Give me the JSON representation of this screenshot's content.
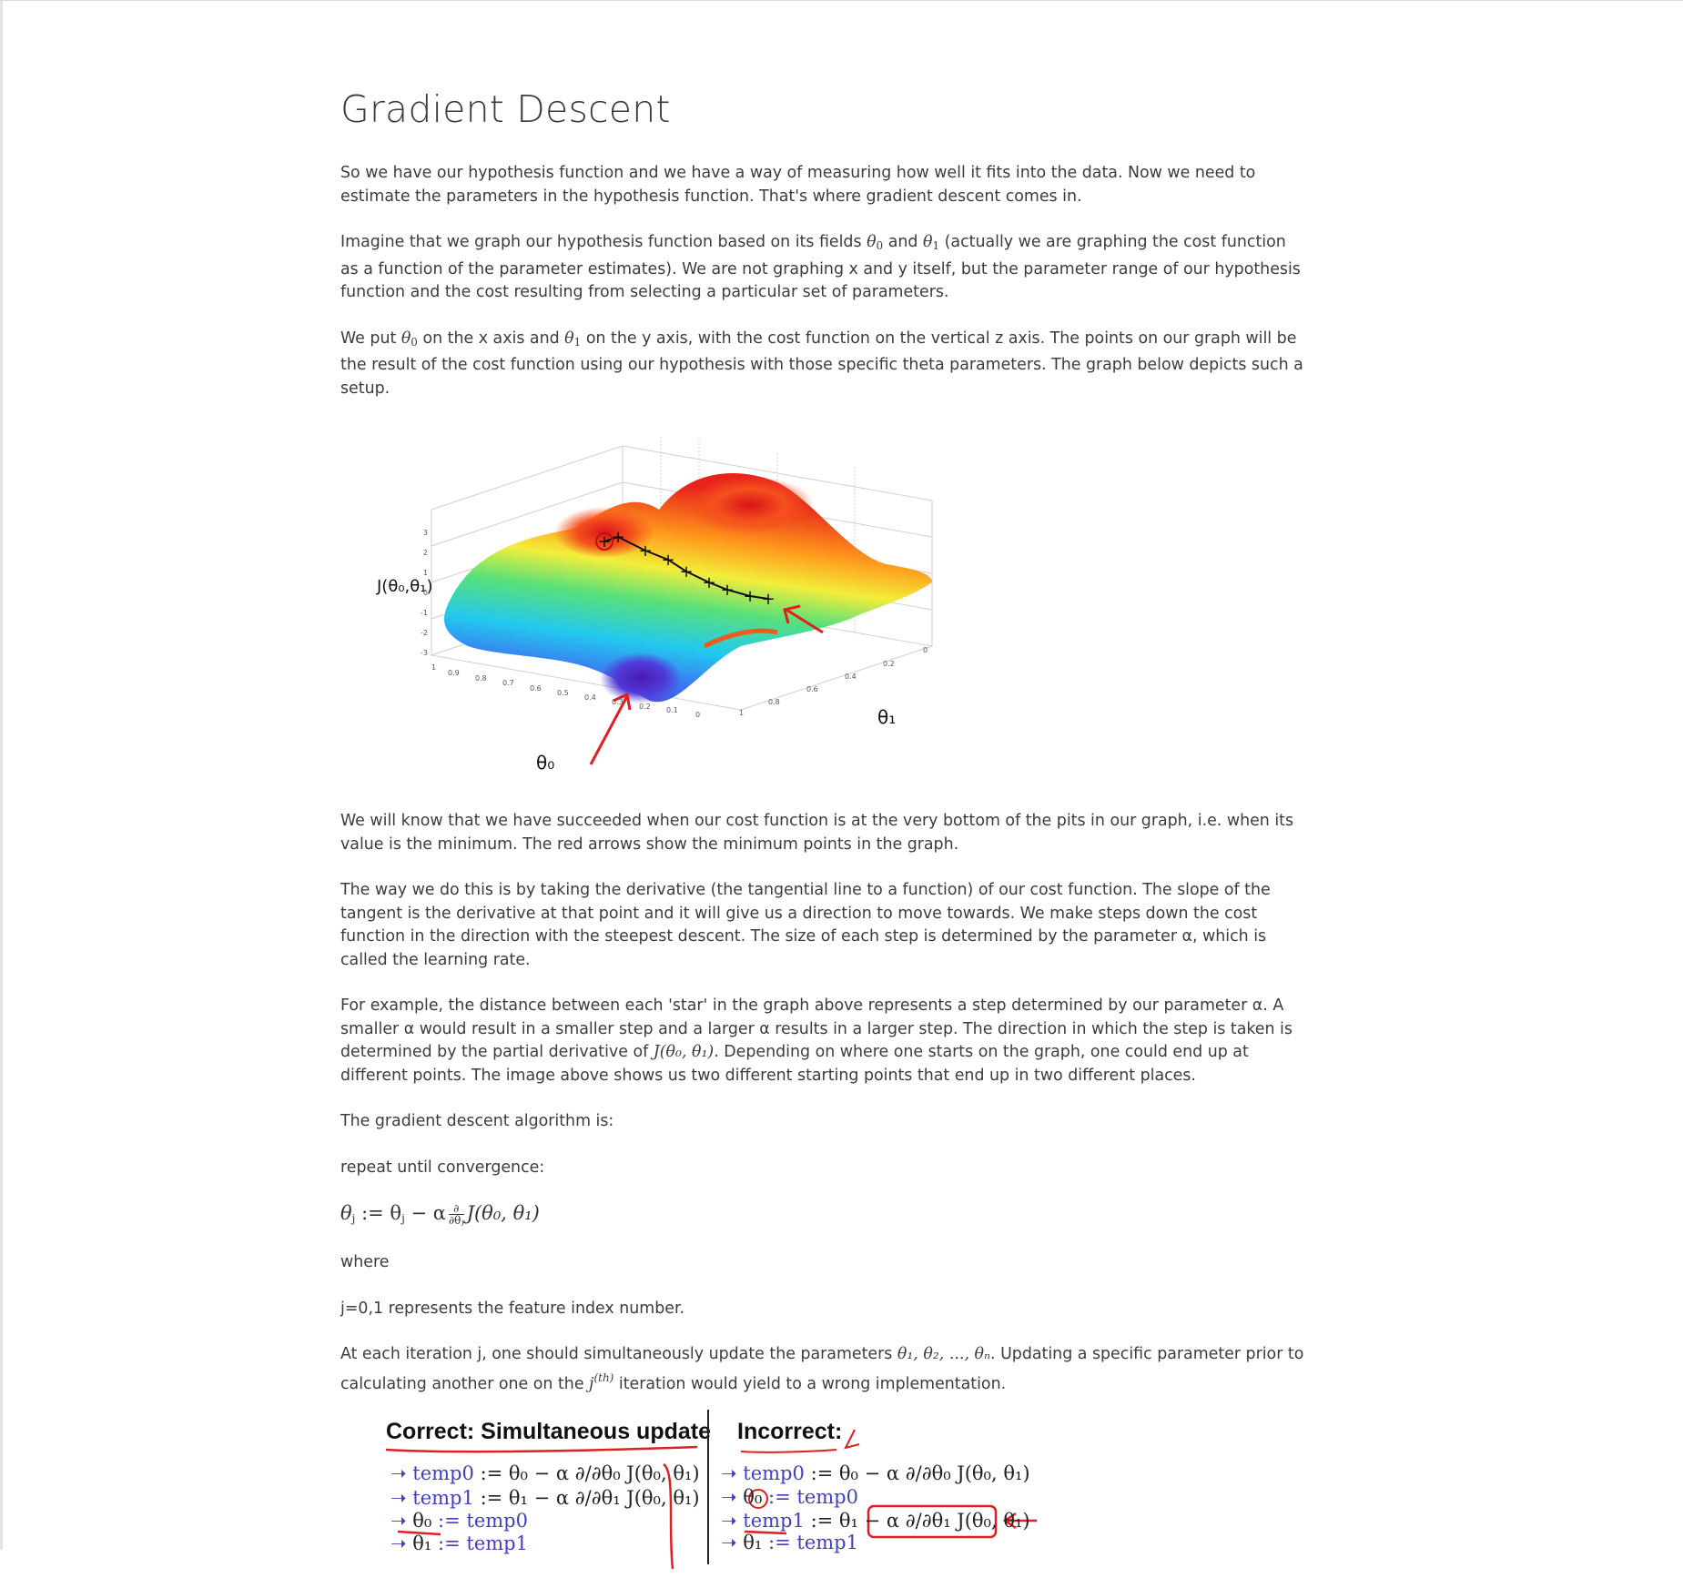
{
  "page": {
    "title": "Gradient Descent",
    "p1": "So we have our hypothesis function and we have a way of measuring how well it fits into the data. Now we need to estimate the parameters in the hypothesis function. That's where gradient descent comes in.",
    "p2_a": "Imagine that we graph our hypothesis function based on its fields ",
    "p2_b": " and ",
    "p2_c": " (actually we are graphing the cost function as a function of the parameter estimates). We are not graphing x and y itself, but the parameter range of our hypothesis function and the cost resulting from selecting a particular set of parameters.",
    "p3_a": "We put ",
    "p3_b": " on the x axis and ",
    "p3_c": " on the y axis, with the cost function on the vertical z axis. The points on our graph will be the result of the cost function using our hypothesis with those specific theta parameters. The graph below depicts such a setup.",
    "p4": "We will know that we have succeeded when our cost function is at the very bottom of the pits in our graph, i.e. when its value is the minimum.  The red arrows show the minimum points in the graph.",
    "p5": "The way we do this is by taking the derivative (the tangential line to a function) of our cost function. The slope of the tangent is the derivative at that point and it will give us a direction to move towards. We make steps down the cost function in the direction with the steepest descent. The size of each step is determined by the parameter α, which is called the learning rate.",
    "p6_a": "For example, the distance between each 'star' in the graph above represents a step determined by our parameter α. A smaller α would result in a smaller step and a larger α results in a larger step. The direction in which the step is taken is determined by the partial derivative of ",
    "p6_b": ". Depending on where one starts on the graph, one could end up at different points. The image above shows us two different starting points that end up in two different places.",
    "p7": "The gradient descent algorithm is:",
    "p8": "repeat until convergence:",
    "p9": "where",
    "p10": "j=0,1 represents the feature index number.",
    "p11_a": "At each iteration j, one should simultaneously update the parameters ",
    "p11_b": ". Updating a specific parameter prior to calculating another one on the ",
    "p11_c": " iteration would yield to a wrong implementation.",
    "theta0": "θ",
    "theta1": "θ",
    "J_expr": "J(θ₀, θ₁)",
    "thetas_list": "θ₁, θ₂, ..., θₙ",
    "jth": "j",
    "jth_sup": "(th)",
    "formula_lhs": "θ",
    "formula_mid": ":= θ",
    "formula_minus": " − α",
    "formula_num": "∂",
    "formula_den": "∂θⱼ",
    "formula_rhs": "J(θ₀, θ₁)"
  },
  "figure": {
    "z_label": "J(θ₀,θ₁)",
    "x_label": "θ₀",
    "y_label": "θ₁",
    "z_ticks": [
      "3",
      "2",
      "1",
      "0",
      "-1",
      "-2",
      "-3"
    ],
    "x_ticks": [
      "1",
      "0.9",
      "0.8",
      "0.7",
      "0.6",
      "0.5",
      "0.4",
      "0.3",
      "0.2",
      "0.1",
      "0"
    ],
    "y_ticks": [
      "1",
      "0.8",
      "0.6",
      "0.4",
      "0.2",
      "0"
    ]
  },
  "update_figure": {
    "correct_title": "Correct: Simultaneous update",
    "incorrect_title": "Incorrect:",
    "correct_lines": [
      {
        "lhs": "temp0",
        "rhs": ":= θ₀ − α ∂/∂θ₀ J(θ₀, θ₁)"
      },
      {
        "lhs": "temp1",
        "rhs": ":= θ₁ − α ∂/∂θ₁ J(θ₀, θ₁)"
      },
      {
        "lhs": "θ₀",
        "rhs": ":= temp0"
      },
      {
        "lhs": "θ₁",
        "rhs": ":= temp1"
      }
    ],
    "incorrect_lines": [
      {
        "lhs": "temp0",
        "rhs": ":= θ₀ − α ∂/∂θ₀ J(θ₀, θ₁)"
      },
      {
        "lhs": "θ₀",
        "rhs": ":= temp0"
      },
      {
        "lhs": "temp1",
        "rhs": ":= θ₁ − α ∂/∂θ₁ J(θ₀, θ₁)"
      },
      {
        "lhs": "θ₁",
        "rhs": ":= temp1"
      }
    ]
  },
  "colors": {
    "annotation_red": "#e02020",
    "equation_blue": "#3a3ac8"
  }
}
